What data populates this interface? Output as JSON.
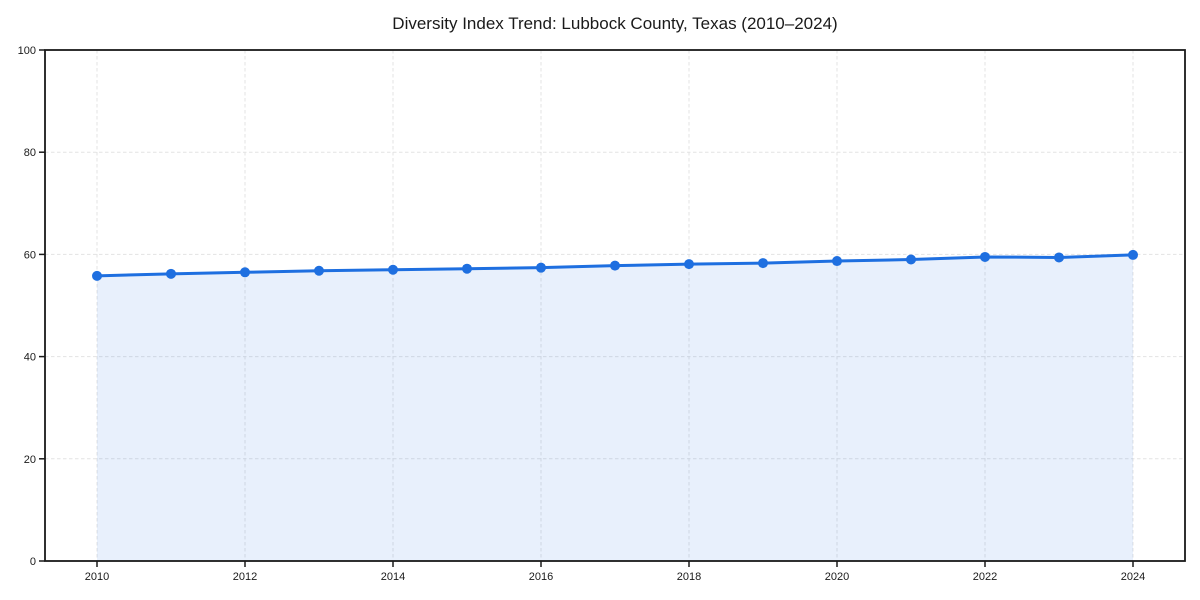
{
  "chart_data": {
    "type": "area",
    "title": "Diversity Index Trend: Lubbock County, Texas (2010–2024)",
    "x": [
      2010,
      2011,
      2012,
      2013,
      2014,
      2015,
      2016,
      2017,
      2018,
      2019,
      2020,
      2021,
      2022,
      2023,
      2024
    ],
    "series": [
      {
        "name": "Diversity Index",
        "values": [
          55.8,
          56.2,
          56.5,
          56.8,
          57.0,
          57.2,
          57.4,
          57.8,
          58.1,
          58.3,
          58.7,
          59.0,
          59.5,
          59.4,
          59.9
        ]
      }
    ],
    "xlabel": "",
    "ylabel": "",
    "ylim": [
      0,
      100
    ],
    "x_ticks": [
      2010,
      2012,
      2014,
      2016,
      2018,
      2020,
      2022,
      2024
    ],
    "y_ticks": [
      0,
      20,
      40,
      60,
      80,
      100
    ],
    "grid": true,
    "grid_style": "dashed",
    "legend": "none",
    "colors": {
      "line": "#1e6fe0",
      "marker": "#1e6fe0",
      "area_fill": "rgba(30, 111, 224, 0.10)",
      "grid": "#e3e3e3",
      "axis": "#1a1a1a",
      "text": "#1a1a1a",
      "background": "#ffffff"
    }
  }
}
